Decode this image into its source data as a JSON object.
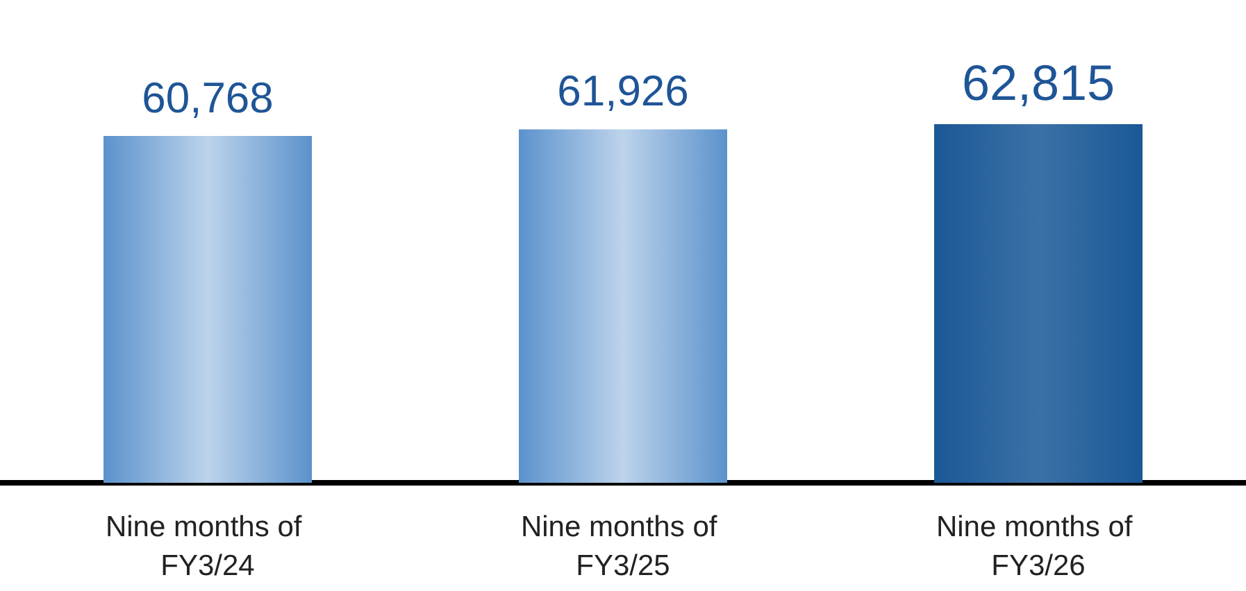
{
  "chart_data": {
    "type": "bar",
    "categories": [
      "Nine months of FY3/24",
      "Nine months of FY3/25",
      "Nine months of FY3/26"
    ],
    "values": [
      60768,
      61926,
      62815
    ],
    "value_labels": [
      "60,768",
      "61,926",
      "62,815"
    ],
    "colors": [
      "#5b92cc",
      "#5b92cc",
      "#1a5896"
    ]
  }
}
